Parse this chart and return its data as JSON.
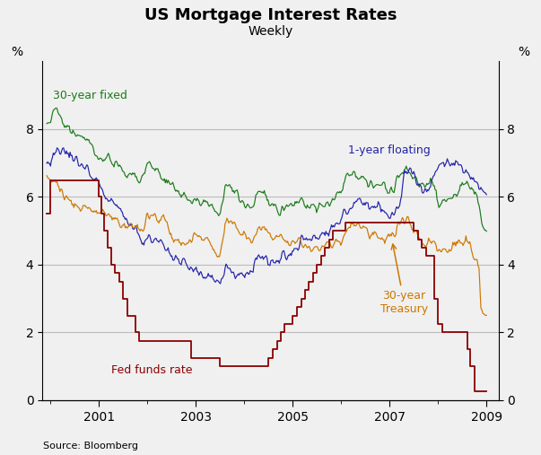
{
  "title": "US Mortgage Interest Rates",
  "subtitle": "Weekly",
  "source": "Source: Bloomberg",
  "ylabel_left": "%",
  "ylabel_right": "%",
  "ylim": [
    0,
    10
  ],
  "yticks": [
    0,
    2,
    4,
    6,
    8
  ],
  "xticks": [
    2001,
    2003,
    2005,
    2007,
    2009
  ],
  "xlim": [
    1999.83,
    2009.25
  ],
  "background_color": "#f0f0f0",
  "grid_color": "#bbbbbb",
  "colors": {
    "30yr_fixed": "#1a7a1a",
    "1yr_floating": "#2222aa",
    "30yr_treasury": "#cc7700",
    "fed_funds": "#8b0000"
  },
  "30yr_fixed": [
    [
      1999.92,
      8.15
    ],
    [
      2000.0,
      8.3
    ],
    [
      2000.05,
      8.5
    ],
    [
      2000.1,
      8.65
    ],
    [
      2000.15,
      8.52
    ],
    [
      2000.2,
      8.4
    ],
    [
      2000.3,
      8.25
    ],
    [
      2000.4,
      8.05
    ],
    [
      2000.5,
      7.95
    ],
    [
      2000.6,
      7.8
    ],
    [
      2000.7,
      7.75
    ],
    [
      2000.8,
      7.65
    ],
    [
      2000.9,
      7.3
    ],
    [
      2001.0,
      7.05
    ],
    [
      2001.1,
      7.1
    ],
    [
      2001.15,
      7.25
    ],
    [
      2001.2,
      7.2
    ],
    [
      2001.25,
      7.1
    ],
    [
      2001.3,
      7.0
    ],
    [
      2001.4,
      6.95
    ],
    [
      2001.5,
      6.75
    ],
    [
      2001.6,
      6.6
    ],
    [
      2001.7,
      6.65
    ],
    [
      2001.8,
      6.6
    ],
    [
      2001.9,
      6.55
    ],
    [
      2002.0,
      7.0
    ],
    [
      2002.05,
      7.0
    ],
    [
      2002.1,
      6.9
    ],
    [
      2002.2,
      6.8
    ],
    [
      2002.3,
      6.65
    ],
    [
      2002.4,
      6.5
    ],
    [
      2002.5,
      6.35
    ],
    [
      2002.6,
      6.2
    ],
    [
      2002.7,
      6.1
    ],
    [
      2002.8,
      6.0
    ],
    [
      2002.9,
      5.9
    ],
    [
      2003.0,
      5.95
    ],
    [
      2003.1,
      5.85
    ],
    [
      2003.2,
      5.9
    ],
    [
      2003.3,
      5.8
    ],
    [
      2003.4,
      5.6
    ],
    [
      2003.5,
      5.4
    ],
    [
      2003.6,
      6.3
    ],
    [
      2003.7,
      6.25
    ],
    [
      2003.8,
      6.1
    ],
    [
      2003.9,
      5.95
    ],
    [
      2004.0,
      5.85
    ],
    [
      2004.1,
      5.75
    ],
    [
      2004.2,
      5.85
    ],
    [
      2004.3,
      6.3
    ],
    [
      2004.4,
      6.1
    ],
    [
      2004.5,
      5.85
    ],
    [
      2004.6,
      5.75
    ],
    [
      2004.7,
      5.72
    ],
    [
      2004.8,
      5.68
    ],
    [
      2004.9,
      5.72
    ],
    [
      2005.0,
      5.75
    ],
    [
      2005.1,
      5.9
    ],
    [
      2005.2,
      5.85
    ],
    [
      2005.3,
      5.75
    ],
    [
      2005.4,
      5.72
    ],
    [
      2005.5,
      5.65
    ],
    [
      2005.6,
      5.7
    ],
    [
      2005.7,
      5.75
    ],
    [
      2005.8,
      5.8
    ],
    [
      2005.9,
      6.1
    ],
    [
      2006.0,
      6.2
    ],
    [
      2006.1,
      6.6
    ],
    [
      2006.2,
      6.68
    ],
    [
      2006.3,
      6.65
    ],
    [
      2006.4,
      6.58
    ],
    [
      2006.5,
      6.4
    ],
    [
      2006.6,
      6.38
    ],
    [
      2006.7,
      6.35
    ],
    [
      2006.8,
      6.35
    ],
    [
      2006.9,
      6.3
    ],
    [
      2007.0,
      6.22
    ],
    [
      2007.1,
      6.25
    ],
    [
      2007.2,
      6.7
    ],
    [
      2007.3,
      6.8
    ],
    [
      2007.4,
      6.72
    ],
    [
      2007.5,
      6.65
    ],
    [
      2007.6,
      6.4
    ],
    [
      2007.7,
      6.35
    ],
    [
      2007.8,
      6.4
    ],
    [
      2007.9,
      6.42
    ],
    [
      2008.0,
      5.76
    ],
    [
      2008.1,
      5.88
    ],
    [
      2008.2,
      5.98
    ],
    [
      2008.3,
      6.08
    ],
    [
      2008.4,
      6.12
    ],
    [
      2008.5,
      6.38
    ],
    [
      2008.6,
      6.42
    ],
    [
      2008.7,
      6.22
    ],
    [
      2008.8,
      6.18
    ],
    [
      2008.88,
      5.5
    ],
    [
      2008.95,
      5.1
    ],
    [
      2009.0,
      5.05
    ]
  ],
  "1yr_floating": [
    [
      1999.92,
      7.0
    ],
    [
      2000.0,
      7.1
    ],
    [
      2000.1,
      7.3
    ],
    [
      2000.2,
      7.45
    ],
    [
      2000.3,
      7.4
    ],
    [
      2000.4,
      7.3
    ],
    [
      2000.5,
      7.15
    ],
    [
      2000.6,
      7.05
    ],
    [
      2000.7,
      6.9
    ],
    [
      2000.8,
      6.7
    ],
    [
      2000.9,
      6.55
    ],
    [
      2001.0,
      6.5
    ],
    [
      2001.1,
      6.1
    ],
    [
      2001.2,
      6.0
    ],
    [
      2001.3,
      5.9
    ],
    [
      2001.4,
      5.75
    ],
    [
      2001.5,
      5.5
    ],
    [
      2001.6,
      5.2
    ],
    [
      2001.7,
      5.1
    ],
    [
      2001.8,
      4.95
    ],
    [
      2001.9,
      4.75
    ],
    [
      2002.0,
      4.7
    ],
    [
      2002.1,
      4.75
    ],
    [
      2002.2,
      4.7
    ],
    [
      2002.3,
      4.6
    ],
    [
      2002.4,
      4.5
    ],
    [
      2002.5,
      4.35
    ],
    [
      2002.6,
      4.2
    ],
    [
      2002.7,
      4.1
    ],
    [
      2002.8,
      3.95
    ],
    [
      2002.9,
      3.78
    ],
    [
      2003.0,
      3.8
    ],
    [
      2003.1,
      3.72
    ],
    [
      2003.2,
      3.68
    ],
    [
      2003.3,
      3.62
    ],
    [
      2003.4,
      3.56
    ],
    [
      2003.5,
      3.48
    ],
    [
      2003.6,
      3.75
    ],
    [
      2003.7,
      3.82
    ],
    [
      2003.8,
      3.78
    ],
    [
      2003.9,
      3.72
    ],
    [
      2004.0,
      3.72
    ],
    [
      2004.1,
      3.78
    ],
    [
      2004.2,
      3.95
    ],
    [
      2004.3,
      4.18
    ],
    [
      2004.4,
      4.12
    ],
    [
      2004.5,
      4.02
    ],
    [
      2004.6,
      4.12
    ],
    [
      2004.7,
      4.18
    ],
    [
      2004.8,
      4.25
    ],
    [
      2004.9,
      4.35
    ],
    [
      2005.0,
      4.45
    ],
    [
      2005.1,
      4.55
    ],
    [
      2005.2,
      4.65
    ],
    [
      2005.3,
      4.75
    ],
    [
      2005.4,
      4.8
    ],
    [
      2005.5,
      4.75
    ],
    [
      2005.6,
      4.85
    ],
    [
      2005.7,
      4.95
    ],
    [
      2005.8,
      5.05
    ],
    [
      2005.9,
      5.25
    ],
    [
      2006.0,
      5.45
    ],
    [
      2006.1,
      5.6
    ],
    [
      2006.2,
      5.75
    ],
    [
      2006.3,
      5.82
    ],
    [
      2006.4,
      5.88
    ],
    [
      2006.5,
      5.82
    ],
    [
      2006.6,
      5.78
    ],
    [
      2006.7,
      5.72
    ],
    [
      2006.8,
      5.68
    ],
    [
      2006.9,
      5.62
    ],
    [
      2007.0,
      5.55
    ],
    [
      2007.1,
      5.58
    ],
    [
      2007.2,
      5.72
    ],
    [
      2007.3,
      6.65
    ],
    [
      2007.4,
      6.72
    ],
    [
      2007.5,
      6.68
    ],
    [
      2007.6,
      6.35
    ],
    [
      2007.7,
      6.05
    ],
    [
      2007.8,
      6.12
    ],
    [
      2007.9,
      6.58
    ],
    [
      2008.0,
      6.92
    ],
    [
      2008.1,
      7.05
    ],
    [
      2008.2,
      6.85
    ],
    [
      2008.3,
      6.92
    ],
    [
      2008.4,
      6.98
    ],
    [
      2008.5,
      6.85
    ],
    [
      2008.6,
      6.68
    ],
    [
      2008.7,
      6.55
    ],
    [
      2008.8,
      6.45
    ],
    [
      2008.9,
      6.15
    ],
    [
      2009.0,
      6.08
    ]
  ],
  "30yr_treasury": [
    [
      1999.92,
      6.65
    ],
    [
      2000.0,
      6.5
    ],
    [
      2000.1,
      6.35
    ],
    [
      2000.2,
      6.15
    ],
    [
      2000.3,
      5.98
    ],
    [
      2000.4,
      5.85
    ],
    [
      2000.5,
      5.78
    ],
    [
      2000.6,
      5.72
    ],
    [
      2000.7,
      5.68
    ],
    [
      2000.8,
      5.62
    ],
    [
      2000.9,
      5.58
    ],
    [
      2001.0,
      5.52
    ],
    [
      2001.1,
      5.45
    ],
    [
      2001.2,
      5.48
    ],
    [
      2001.25,
      5.52
    ],
    [
      2001.3,
      5.45
    ],
    [
      2001.4,
      5.38
    ],
    [
      2001.5,
      5.18
    ],
    [
      2001.6,
      5.12
    ],
    [
      2001.7,
      5.12
    ],
    [
      2001.8,
      5.08
    ],
    [
      2001.9,
      5.02
    ],
    [
      2002.0,
      5.42
    ],
    [
      2002.1,
      5.48
    ],
    [
      2002.2,
      5.42
    ],
    [
      2002.3,
      5.38
    ],
    [
      2002.4,
      5.22
    ],
    [
      2002.5,
      4.88
    ],
    [
      2002.6,
      4.72
    ],
    [
      2002.7,
      4.68
    ],
    [
      2002.8,
      4.62
    ],
    [
      2002.9,
      4.58
    ],
    [
      2003.0,
      4.92
    ],
    [
      2003.1,
      4.82
    ],
    [
      2003.2,
      4.78
    ],
    [
      2003.3,
      4.62
    ],
    [
      2003.4,
      4.32
    ],
    [
      2003.5,
      4.28
    ],
    [
      2003.6,
      5.32
    ],
    [
      2003.7,
      5.28
    ],
    [
      2003.8,
      5.05
    ],
    [
      2003.9,
      4.98
    ],
    [
      2004.0,
      4.88
    ],
    [
      2004.1,
      4.72
    ],
    [
      2004.2,
      4.82
    ],
    [
      2004.3,
      5.12
    ],
    [
      2004.4,
      5.18
    ],
    [
      2004.5,
      4.98
    ],
    [
      2004.6,
      4.82
    ],
    [
      2004.7,
      4.78
    ],
    [
      2004.8,
      4.72
    ],
    [
      2004.9,
      4.72
    ],
    [
      2005.0,
      4.62
    ],
    [
      2005.1,
      4.72
    ],
    [
      2005.2,
      4.68
    ],
    [
      2005.3,
      4.52
    ],
    [
      2005.4,
      4.42
    ],
    [
      2005.5,
      4.38
    ],
    [
      2005.6,
      4.52
    ],
    [
      2005.7,
      4.58
    ],
    [
      2005.8,
      4.62
    ],
    [
      2005.9,
      4.72
    ],
    [
      2006.0,
      4.62
    ],
    [
      2006.1,
      5.02
    ],
    [
      2006.2,
      5.12
    ],
    [
      2006.3,
      5.12
    ],
    [
      2006.4,
      5.12
    ],
    [
      2006.5,
      4.98
    ],
    [
      2006.6,
      4.92
    ],
    [
      2006.7,
      4.82
    ],
    [
      2006.8,
      4.78
    ],
    [
      2006.9,
      4.72
    ],
    [
      2007.0,
      4.88
    ],
    [
      2007.1,
      4.92
    ],
    [
      2007.2,
      5.22
    ],
    [
      2007.3,
      5.28
    ],
    [
      2007.4,
      5.22
    ],
    [
      2007.5,
      4.98
    ],
    [
      2007.6,
      4.88
    ],
    [
      2007.7,
      4.72
    ],
    [
      2007.8,
      4.68
    ],
    [
      2007.9,
      4.68
    ],
    [
      2008.0,
      4.48
    ],
    [
      2008.1,
      4.45
    ],
    [
      2008.2,
      4.42
    ],
    [
      2008.3,
      4.58
    ],
    [
      2008.4,
      4.58
    ],
    [
      2008.5,
      4.68
    ],
    [
      2008.6,
      4.62
    ],
    [
      2008.7,
      4.38
    ],
    [
      2008.8,
      4.25
    ],
    [
      2008.85,
      3.8
    ],
    [
      2008.88,
      2.6
    ],
    [
      2008.92,
      2.55
    ],
    [
      2009.0,
      2.52
    ]
  ],
  "fed_funds": [
    [
      1999.92,
      5.5
    ],
    [
      1999.92,
      5.5
    ],
    [
      2000.0,
      5.5
    ],
    [
      2000.0,
      6.5
    ],
    [
      2000.08,
      6.5
    ],
    [
      2000.08,
      6.5
    ],
    [
      2000.5,
      6.5
    ],
    [
      2000.5,
      6.5
    ],
    [
      2001.0,
      6.5
    ],
    [
      2001.0,
      6.0
    ],
    [
      2001.04,
      6.0
    ],
    [
      2001.04,
      5.5
    ],
    [
      2001.1,
      5.5
    ],
    [
      2001.1,
      5.0
    ],
    [
      2001.17,
      5.0
    ],
    [
      2001.17,
      4.5
    ],
    [
      2001.25,
      4.5
    ],
    [
      2001.25,
      4.0
    ],
    [
      2001.33,
      4.0
    ],
    [
      2001.33,
      3.75
    ],
    [
      2001.42,
      3.75
    ],
    [
      2001.42,
      3.5
    ],
    [
      2001.5,
      3.5
    ],
    [
      2001.5,
      3.0
    ],
    [
      2001.58,
      3.0
    ],
    [
      2001.58,
      2.5
    ],
    [
      2001.75,
      2.5
    ],
    [
      2001.75,
      2.0
    ],
    [
      2001.83,
      2.0
    ],
    [
      2001.83,
      1.75
    ],
    [
      2001.92,
      1.75
    ],
    [
      2001.92,
      1.75
    ],
    [
      2002.0,
      1.75
    ],
    [
      2002.0,
      1.75
    ],
    [
      2002.9,
      1.75
    ],
    [
      2002.9,
      1.25
    ],
    [
      2003.0,
      1.25
    ],
    [
      2003.0,
      1.25
    ],
    [
      2003.5,
      1.25
    ],
    [
      2003.5,
      1.0
    ],
    [
      2004.5,
      1.0
    ],
    [
      2004.5,
      1.25
    ],
    [
      2004.58,
      1.25
    ],
    [
      2004.58,
      1.5
    ],
    [
      2004.67,
      1.5
    ],
    [
      2004.67,
      1.75
    ],
    [
      2004.75,
      1.75
    ],
    [
      2004.75,
      2.0
    ],
    [
      2004.83,
      2.0
    ],
    [
      2004.83,
      2.25
    ],
    [
      2005.0,
      2.25
    ],
    [
      2005.0,
      2.5
    ],
    [
      2005.08,
      2.5
    ],
    [
      2005.08,
      2.75
    ],
    [
      2005.17,
      2.75
    ],
    [
      2005.17,
      3.0
    ],
    [
      2005.25,
      3.0
    ],
    [
      2005.25,
      3.25
    ],
    [
      2005.33,
      3.25
    ],
    [
      2005.33,
      3.5
    ],
    [
      2005.42,
      3.5
    ],
    [
      2005.42,
      3.75
    ],
    [
      2005.5,
      3.75
    ],
    [
      2005.5,
      4.0
    ],
    [
      2005.58,
      4.0
    ],
    [
      2005.58,
      4.25
    ],
    [
      2005.67,
      4.25
    ],
    [
      2005.67,
      4.5
    ],
    [
      2005.75,
      4.5
    ],
    [
      2005.75,
      4.75
    ],
    [
      2005.83,
      4.75
    ],
    [
      2005.83,
      5.0
    ],
    [
      2006.0,
      5.0
    ],
    [
      2006.0,
      5.0
    ],
    [
      2006.08,
      5.0
    ],
    [
      2006.08,
      5.25
    ],
    [
      2006.33,
      5.25
    ],
    [
      2006.33,
      5.25
    ],
    [
      2007.5,
      5.25
    ],
    [
      2007.5,
      5.0
    ],
    [
      2007.58,
      5.0
    ],
    [
      2007.58,
      4.75
    ],
    [
      2007.67,
      4.75
    ],
    [
      2007.67,
      4.5
    ],
    [
      2007.75,
      4.5
    ],
    [
      2007.75,
      4.25
    ],
    [
      2007.83,
      4.25
    ],
    [
      2007.83,
      4.25
    ],
    [
      2007.92,
      4.25
    ],
    [
      2007.92,
      3.0
    ],
    [
      2008.0,
      3.0
    ],
    [
      2008.0,
      2.25
    ],
    [
      2008.08,
      2.25
    ],
    [
      2008.08,
      2.0
    ],
    [
      2008.17,
      2.0
    ],
    [
      2008.17,
      2.0
    ],
    [
      2008.6,
      2.0
    ],
    [
      2008.6,
      1.5
    ],
    [
      2008.67,
      1.5
    ],
    [
      2008.67,
      1.0
    ],
    [
      2008.75,
      1.0
    ],
    [
      2008.75,
      0.25
    ],
    [
      2008.83,
      0.25
    ],
    [
      2008.83,
      0.25
    ],
    [
      2009.0,
      0.25
    ]
  ]
}
